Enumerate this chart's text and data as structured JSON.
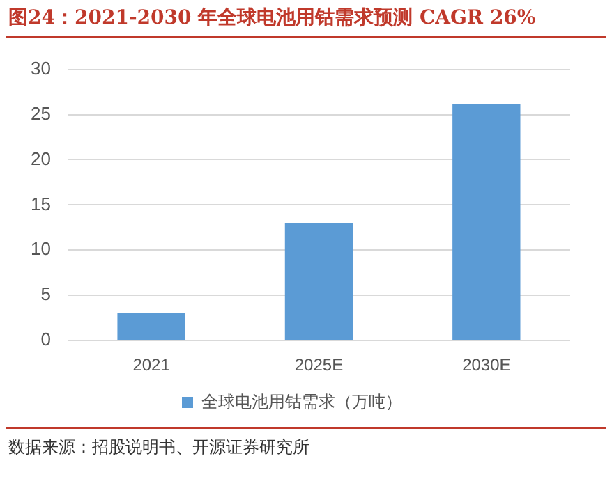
{
  "chart_data": {
    "type": "bar",
    "title": "图24：2021-2030 年全球电池用钴需求预测 CAGR 26%",
    "categories": [
      "2021",
      "2025E",
      "2030E"
    ],
    "series": [
      {
        "name": "全球电池用钴需求（万吨）",
        "color": "#5b9bd5",
        "values": [
          3.1,
          13.0,
          26.2
        ]
      }
    ],
    "ylim": [
      0,
      30
    ],
    "yticks": [
      0,
      5,
      10,
      15,
      20,
      25,
      30
    ],
    "grid": "y",
    "legend": "bottom",
    "annotations": [
      "数据来源：招股说明书、开源证券研究所"
    ]
  }
}
